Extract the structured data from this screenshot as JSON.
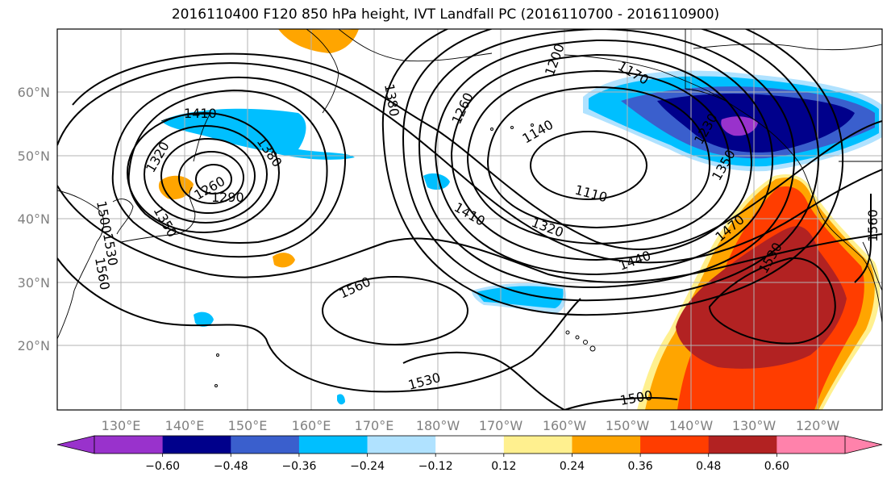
{
  "title": "2016110400 F120 850 hPa height, IVT Landfall PC (2016110700 - 2016110900)",
  "map": {
    "lon_labels": [
      "130°E",
      "140°E",
      "150°E",
      "160°E",
      "170°E",
      "180°W",
      "170°W",
      "160°W",
      "150°W",
      "140°W",
      "130°W",
      "120°W"
    ],
    "lat_labels": [
      "60°N",
      "50°N",
      "40°N",
      "30°N",
      "20°N"
    ],
    "contour_labels": [
      "1410",
      "1380",
      "1320",
      "1260",
      "1290",
      "1350",
      "1500",
      "1530",
      "1560",
      "1380",
      "1200",
      "1260",
      "1140",
      "1170",
      "1110",
      "1410",
      "1320",
      "1440",
      "1230",
      "1350",
      "1470",
      "1530",
      "1560",
      "1560",
      "1530",
      "1500"
    ]
  },
  "colorbar": {
    "colors": [
      "#9932cc",
      "#00008b",
      "#3a5fcd",
      "#00bfff",
      "#b0e2ff",
      "#ffffff",
      "#fff08f",
      "#ffa500",
      "#ff3d00",
      "#b22222",
      "#ff82ab"
    ],
    "tick_labels": [
      "−0.60",
      "−0.48",
      "−0.36",
      "−0.24",
      "−0.12",
      "0.12",
      "0.24",
      "0.36",
      "0.48",
      "0.60"
    ]
  }
}
